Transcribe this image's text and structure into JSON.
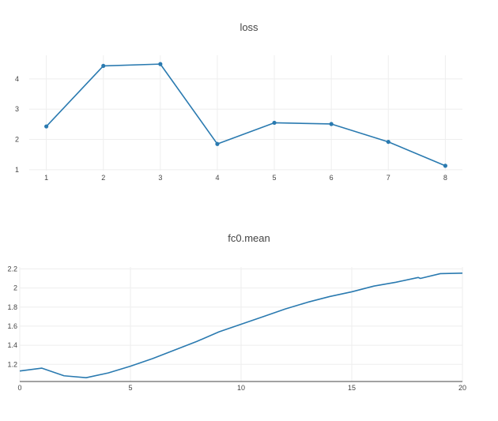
{
  "chart_data": [
    {
      "type": "line",
      "title": "loss",
      "xlabel": "",
      "ylabel": "",
      "x": [
        1,
        2,
        3,
        4,
        5,
        6,
        7,
        8
      ],
      "series": [
        {
          "values": [
            2.43,
            4.43,
            4.49,
            1.85,
            2.55,
            2.51,
            1.92,
            1.13
          ]
        }
      ],
      "x_ticks": [
        "1",
        "2",
        "3",
        "4",
        "5",
        "6",
        "7",
        "8"
      ],
      "y_ticks": [
        "1",
        "2",
        "3",
        "4"
      ],
      "xlim": [
        0.7,
        8.3
      ],
      "ylim": [
        0.97,
        4.78
      ],
      "markers": true,
      "grid": true,
      "color": "#2a7ab0"
    },
    {
      "type": "line",
      "title": "fc0.mean",
      "xlabel": "",
      "ylabel": "",
      "x": [
        0,
        1,
        2,
        3,
        4,
        5,
        6,
        7,
        8,
        9,
        10,
        11,
        12,
        13,
        14,
        15,
        16,
        17,
        18,
        18.1,
        19,
        20
      ],
      "series": [
        {
          "values": [
            1.13,
            1.16,
            1.08,
            1.06,
            1.11,
            1.18,
            1.26,
            1.35,
            1.44,
            1.54,
            1.62,
            1.7,
            1.78,
            1.85,
            1.91,
            1.96,
            2.02,
            2.06,
            2.11,
            2.1,
            2.15,
            2.155
          ]
        }
      ],
      "x_ticks": [
        "0",
        "5",
        "10",
        "15",
        "20"
      ],
      "y_ticks": [
        "1.2",
        "1.4",
        "1.6",
        "1.8",
        "2",
        "2.2"
      ],
      "xlim": [
        0,
        20
      ],
      "ylim": [
        1.02,
        2.22
      ],
      "markers": false,
      "grid": true,
      "color": "#2a7ab0"
    }
  ]
}
